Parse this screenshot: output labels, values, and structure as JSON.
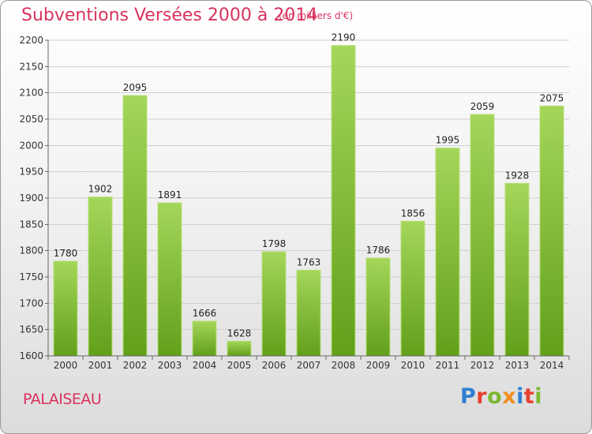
{
  "header": {
    "title": "Subventions Versées 2000 à 2014",
    "unit": "(en milliers d'€)"
  },
  "footer": {
    "place": "PALAISEAU",
    "logo": "Proxiti",
    "logo_colors": [
      "#2e7fd0",
      "#e8402e",
      "#7cb82f",
      "#f08c1e",
      "#2e7fd0",
      "#e8402e",
      "#7cb82f"
    ]
  },
  "colors": {
    "accent": "#d9325e",
    "bar_top": "#a4d65a",
    "bar_bottom": "#62a01a"
  },
  "chart_data": {
    "type": "bar",
    "title": "Subventions Versées 2000 à 2014",
    "subtitle": "(en milliers d'€)",
    "xlabel": "",
    "ylabel": "",
    "categories": [
      "2000",
      "2001",
      "2002",
      "2003",
      "2004",
      "2005",
      "2006",
      "2007",
      "2008",
      "2009",
      "2010",
      "2011",
      "2012",
      "2013",
      "2014"
    ],
    "values": [
      1780,
      1902,
      2095,
      1891,
      1666,
      1628,
      1798,
      1763,
      2190,
      1786,
      1856,
      1995,
      2059,
      1928,
      2075
    ],
    "ylim": [
      1600,
      2200
    ],
    "yticks": [
      1600,
      1650,
      1700,
      1750,
      1800,
      1850,
      1900,
      1950,
      2000,
      2050,
      2100,
      2150,
      2200
    ],
    "grid": true,
    "legend": "none"
  }
}
